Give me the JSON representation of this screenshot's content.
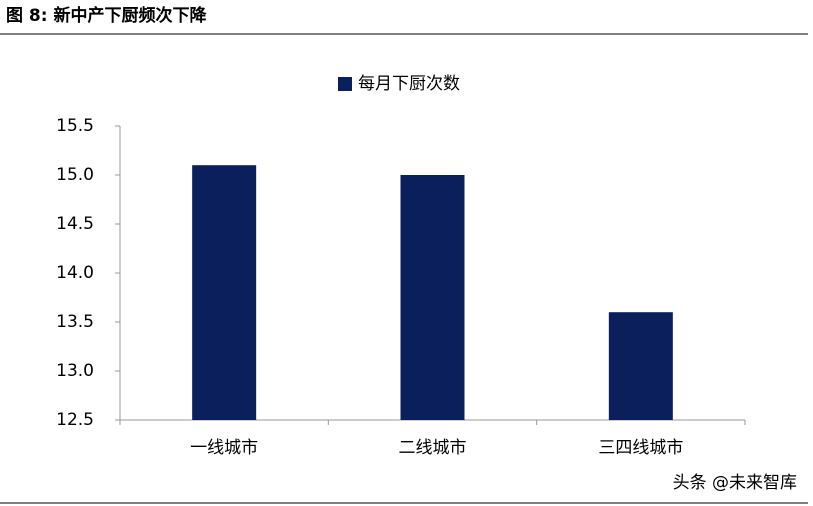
{
  "chart_data": {
    "type": "bar",
    "title": "图 8: 新中产下厨频次下降",
    "categories": [
      "一线城市",
      "二线城市",
      "三四线城市"
    ],
    "series": [
      {
        "name": "每月下厨次数",
        "color": "#0b1f5c",
        "values": [
          15.1,
          15.0,
          13.6
        ]
      }
    ],
    "ylim": [
      12.5,
      15.5
    ],
    "yticks": [
      12.5,
      {
        "value": 13,
        "label": "13.0"
      },
      13.5,
      {
        "value": 14,
        "label": "14.0"
      },
      14.5,
      {
        "value": 15,
        "label": "15.0"
      },
      15.5
    ],
    "grid": false,
    "legend": "top",
    "watermark": "头条 @未来智库"
  }
}
